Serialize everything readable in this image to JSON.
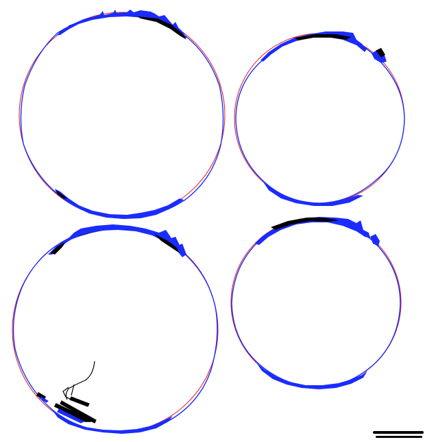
{
  "figure": {
    "panels": [
      {
        "id": "top-left"
      },
      {
        "id": "top-right"
      },
      {
        "id": "bottom-left"
      },
      {
        "id": "bottom-right"
      }
    ],
    "colors": {
      "fit_circle": "#e0141e",
      "outline_blue": "#1a2cff",
      "outline_black": "#000000",
      "background": "#ffffff"
    },
    "scale_bar": {
      "label": ""
    }
  }
}
